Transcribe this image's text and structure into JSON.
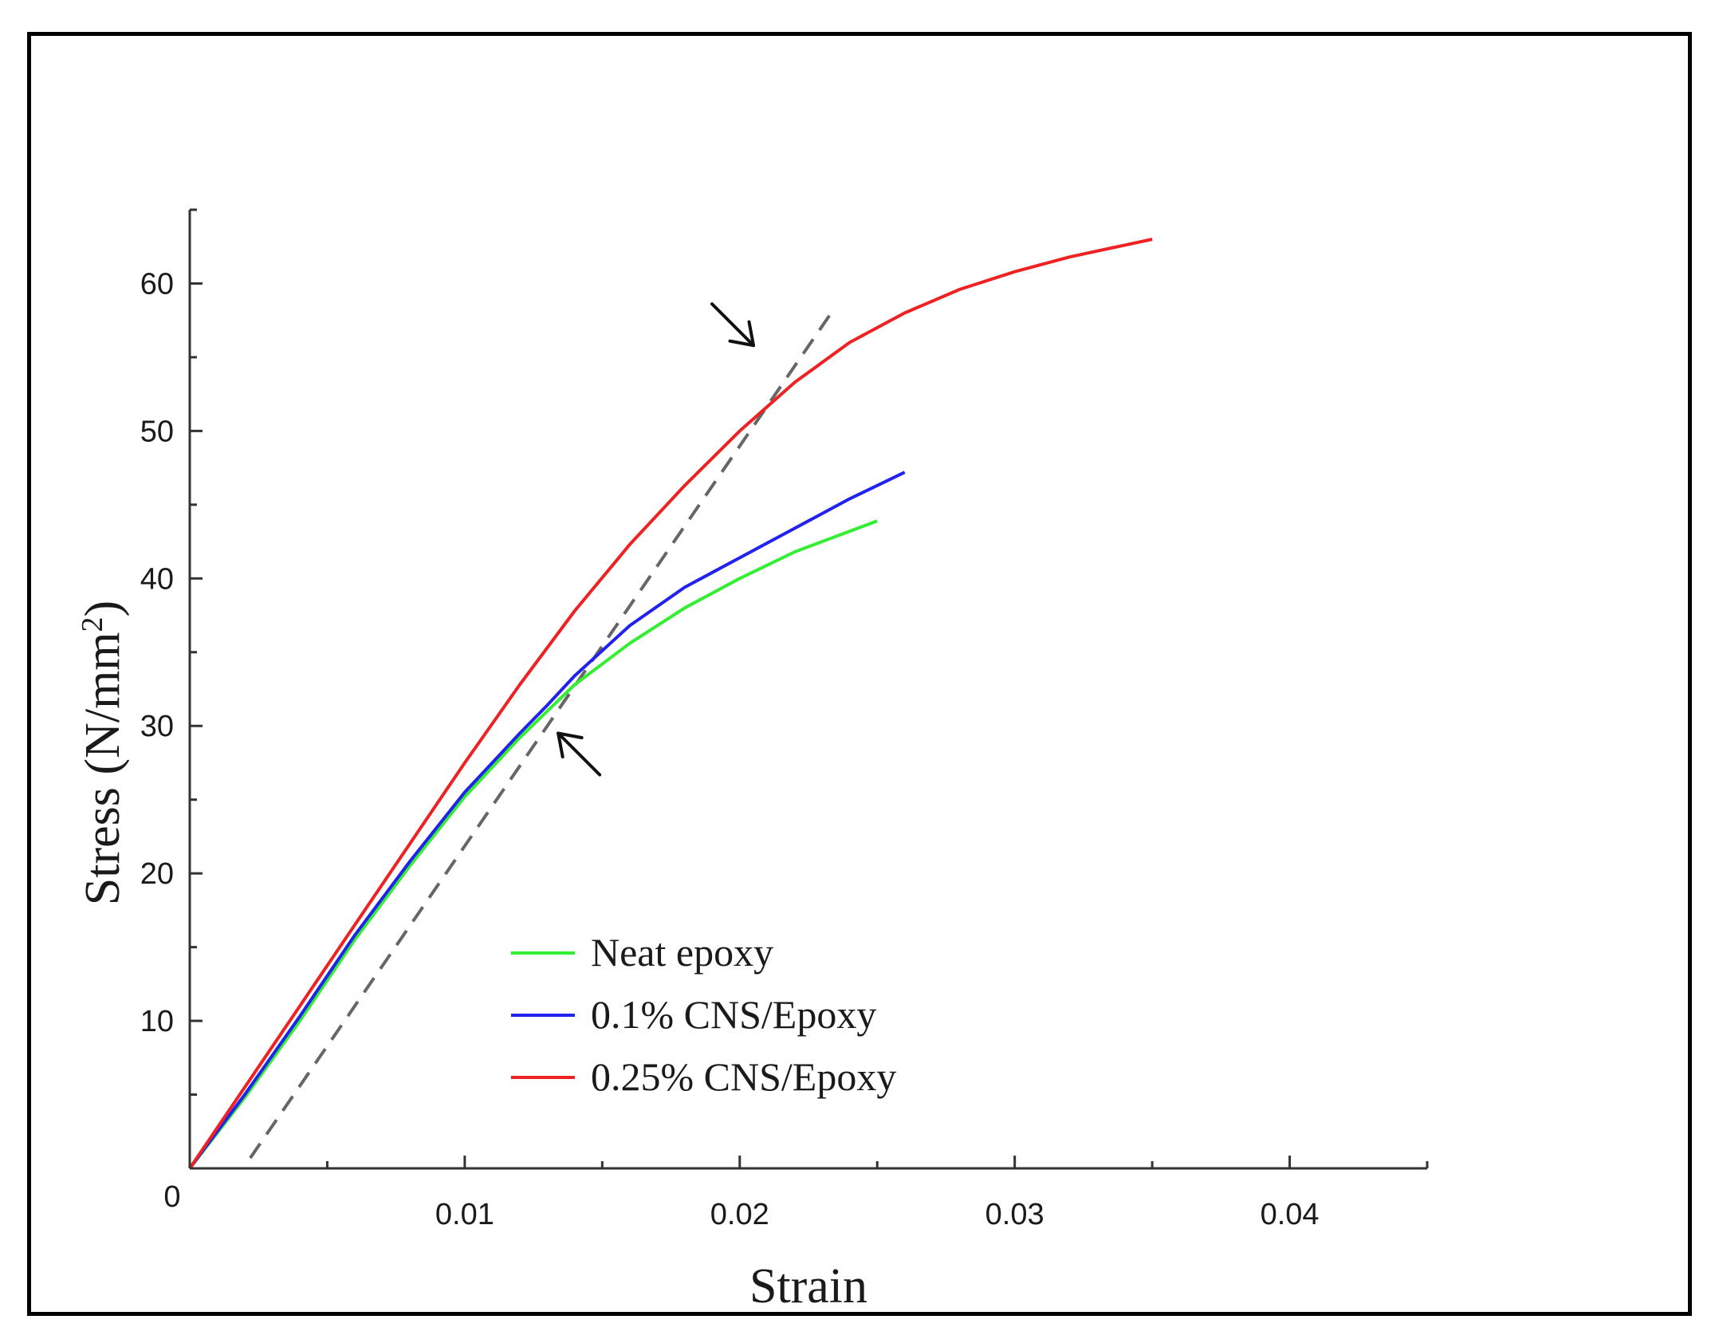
{
  "chart_data": {
    "type": "line",
    "title": "",
    "xlabel": "Strain",
    "ylabel_main": "Stress (N/mm",
    "ylabel_sup": "2",
    "ylabel_close": ")",
    "xlim": [
      0,
      0.045
    ],
    "ylim": [
      0,
      65
    ],
    "origin_label": "0",
    "x_ticks": [
      {
        "value": 0.01,
        "label": "0.01"
      },
      {
        "value": 0.02,
        "label": "0.02"
      },
      {
        "value": 0.03,
        "label": "0.03"
      },
      {
        "value": 0.04,
        "label": "0.04"
      }
    ],
    "y_ticks": [
      {
        "value": 10,
        "label": "10"
      },
      {
        "value": 20,
        "label": "20"
      },
      {
        "value": 30,
        "label": "30"
      },
      {
        "value": 40,
        "label": "40"
      },
      {
        "value": 50,
        "label": "50"
      },
      {
        "value": 60,
        "label": "60"
      }
    ],
    "series": [
      {
        "name": "Neat epoxy",
        "color": "#33ee33",
        "x": [
          0,
          0.002,
          0.004,
          0.006,
          0.008,
          0.01,
          0.012,
          0.013,
          0.014,
          0.016,
          0.018,
          0.02,
          0.022,
          0.024,
          0.025
        ],
        "y": [
          0,
          4.8,
          10,
          15.5,
          20.5,
          25.2,
          29.2,
          31.0,
          32.8,
          35.6,
          38.0,
          40.0,
          41.8,
          43.2,
          43.9
        ]
      },
      {
        "name": "0.1% CNS/Epoxy",
        "color": "#2222ee",
        "x": [
          0,
          0.002,
          0.004,
          0.006,
          0.008,
          0.01,
          0.012,
          0.013,
          0.014,
          0.016,
          0.018,
          0.02,
          0.022,
          0.024,
          0.026
        ],
        "y": [
          0,
          5,
          10.3,
          15.8,
          20.8,
          25.5,
          29.5,
          31.4,
          33.4,
          36.8,
          39.4,
          41.4,
          43.4,
          45.4,
          47.2
        ]
      },
      {
        "name": "0.25% CNS/Epoxy",
        "color": "#ee2222",
        "x": [
          0,
          0.002,
          0.004,
          0.006,
          0.008,
          0.01,
          0.012,
          0.014,
          0.016,
          0.018,
          0.02,
          0.022,
          0.024,
          0.026,
          0.028,
          0.03,
          0.032,
          0.034,
          0.035
        ],
        "y": [
          0,
          5.5,
          11,
          16.5,
          22,
          27.5,
          32.8,
          37.8,
          42.3,
          46.3,
          50.0,
          53.3,
          56.0,
          58.0,
          59.6,
          60.8,
          61.8,
          62.6,
          63.0
        ]
      }
    ],
    "reference_line": {
      "name": "tangent",
      "color": "#666666",
      "x": [
        0.0022,
        0.0234
      ],
      "y": [
        0.7,
        58.2
      ]
    },
    "annotations": [
      {
        "name": "upper-arrow",
        "tip": [
          0.0205,
          55.8
        ],
        "direction": "down-right"
      },
      {
        "name": "lower-arrow",
        "tip": [
          0.0134,
          29.5
        ],
        "direction": "up-left"
      }
    ],
    "legend": {
      "placement": "lower-middle"
    }
  }
}
